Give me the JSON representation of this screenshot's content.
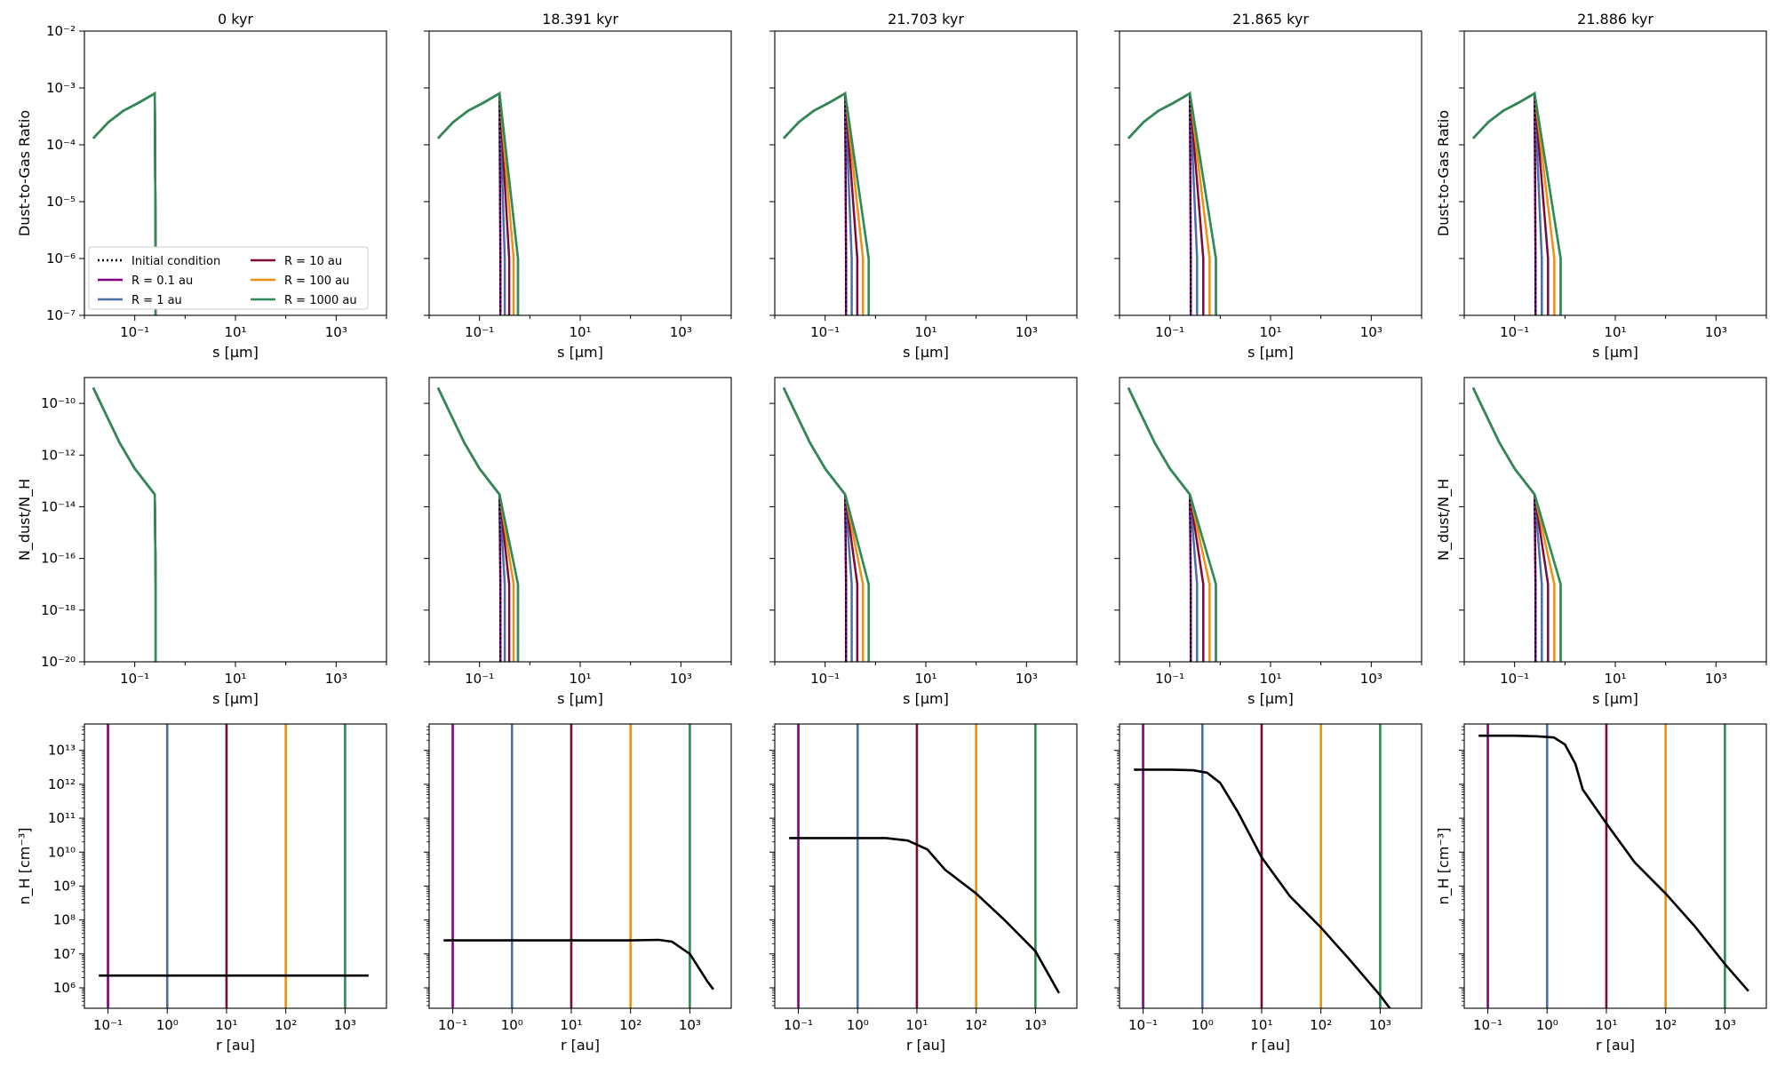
{
  "figure": {
    "panel_titles": [
      "0 kyr",
      "18.391 kyr",
      "21.703 kyr",
      "21.865 kyr",
      "21.886 kyr"
    ]
  },
  "legend": {
    "location": "lower-left of top-left panel",
    "entries": [
      {
        "label": "Initial condition",
        "color": "#000000",
        "style": "dotted"
      },
      {
        "label": "R = 0.1 au",
        "color": "#800080",
        "style": "solid"
      },
      {
        "label": "R = 1 au",
        "color": "#4a6fa5",
        "style": "solid"
      },
      {
        "label": "R = 10 au",
        "color": "#7a0a3a",
        "style": "solid"
      },
      {
        "label": "R = 100 au",
        "color": "#f0900f",
        "style": "solid"
      },
      {
        "label": "R = 1000 au",
        "color": "#2e8b57",
        "style": "solid"
      }
    ]
  },
  "colors": {
    "initial": "#000000",
    "r01": "#800080",
    "r1": "#4a6fa5",
    "r10": "#7a0a3a",
    "r100": "#f0900f",
    "r1000": "#2e8b57",
    "density": "#000000"
  },
  "chart_data": [
    {
      "type": "line",
      "row": "dust-to-gas ratio vs grain size",
      "xlabel": "s [μm]",
      "ylabel": "Dust-to-Gas Ratio",
      "xscale": "log",
      "yscale": "log",
      "xlim": [
        0.01,
        10000
      ],
      "ylim": [
        1e-07,
        0.01
      ],
      "xticks": [
        "10⁻¹",
        "10¹",
        "10³"
      ],
      "xtick_values": [
        0.1,
        10,
        1000
      ],
      "yticks": [
        "10⁻⁷",
        "10⁻⁶",
        "10⁻⁵",
        "10⁻⁴",
        "10⁻³",
        "10⁻²"
      ],
      "ytick_values": [
        1e-07,
        1e-06,
        1e-05,
        0.0001,
        0.001,
        0.01
      ],
      "panels": [
        {
          "title": "0 kyr",
          "x": [
            0.015,
            0.03,
            0.06,
            0.12,
            0.25,
            0.26,
            0.26
          ],
          "y": [
            0.00013,
            0.00025,
            0.0004,
            0.00055,
            0.0008,
            1e-06,
            1e-07
          ],
          "cutoff_spread": 0.0
        },
        {
          "title": "18.391 kyr",
          "x": [
            0.015,
            0.03,
            0.06,
            0.12,
            0.25,
            0.26,
            0.26
          ],
          "y": [
            0.00013,
            0.00025,
            0.0004,
            0.00055,
            0.0008,
            1e-06,
            1e-07
          ],
          "cutoff_spread": 0.035
        },
        {
          "title": "21.703 kyr",
          "x": [
            0.015,
            0.03,
            0.06,
            0.12,
            0.25,
            0.26,
            0.26
          ],
          "y": [
            0.00013,
            0.00025,
            0.0004,
            0.00055,
            0.0008,
            1e-06,
            1e-07
          ],
          "cutoff_spread": 0.045
        },
        {
          "title": "21.865 kyr",
          "x": [
            0.015,
            0.03,
            0.06,
            0.12,
            0.25,
            0.26,
            0.26
          ],
          "y": [
            0.00013,
            0.00025,
            0.0004,
            0.00055,
            0.0008,
            1e-06,
            1e-07
          ],
          "cutoff_spread": 0.05
        },
        {
          "title": "21.886 kyr",
          "x": [
            0.015,
            0.03,
            0.06,
            0.12,
            0.25,
            0.26,
            0.26
          ],
          "y": [
            0.00013,
            0.00025,
            0.0004,
            0.00055,
            0.0008,
            1e-06,
            1e-07
          ],
          "cutoff_spread": 0.05
        }
      ]
    },
    {
      "type": "line",
      "row": "dust number per H vs grain size",
      "xlabel": "s [μm]",
      "ylabel": "N_dust/N_H",
      "xscale": "log",
      "yscale": "log",
      "xlim": [
        0.01,
        10000
      ],
      "ylim": [
        1e-20,
        1e-09
      ],
      "xticks": [
        "10⁻¹",
        "10¹",
        "10³"
      ],
      "xtick_values": [
        0.1,
        10,
        1000
      ],
      "yticks": [
        "10⁻²⁰",
        "10⁻¹⁸",
        "10⁻¹⁶",
        "10⁻¹⁴",
        "10⁻¹²",
        "10⁻¹⁰"
      ],
      "ytick_values": [
        1e-20,
        1e-18,
        1e-16,
        1e-14,
        1e-12,
        1e-10
      ],
      "panels": [
        {
          "title": "0 kyr",
          "x": [
            0.015,
            0.025,
            0.05,
            0.1,
            0.25,
            0.26,
            0.26
          ],
          "y": [
            4e-10,
            5e-11,
            3e-12,
            3e-13,
            3e-14,
            1e-17,
            1e-20
          ],
          "cutoff_spread": 0.0
        },
        {
          "title": "18.391 kyr",
          "x": [
            0.015,
            0.025,
            0.05,
            0.1,
            0.25,
            0.26,
            0.26
          ],
          "y": [
            4e-10,
            5e-11,
            3e-12,
            3e-13,
            3e-14,
            1e-17,
            1e-20
          ],
          "cutoff_spread": 0.035
        },
        {
          "title": "21.703 kyr",
          "x": [
            0.015,
            0.025,
            0.05,
            0.1,
            0.25,
            0.26,
            0.26
          ],
          "y": [
            4e-10,
            5e-11,
            3e-12,
            3e-13,
            3e-14,
            1e-17,
            1e-20
          ],
          "cutoff_spread": 0.045
        },
        {
          "title": "21.865 kyr",
          "x": [
            0.015,
            0.025,
            0.05,
            0.1,
            0.25,
            0.26,
            0.26
          ],
          "y": [
            4e-10,
            5e-11,
            3e-12,
            3e-13,
            3e-14,
            1e-17,
            1e-20
          ],
          "cutoff_spread": 0.05
        },
        {
          "title": "21.886 kyr",
          "x": [
            0.015,
            0.025,
            0.05,
            0.1,
            0.25,
            0.26,
            0.26
          ],
          "y": [
            4e-10,
            5e-11,
            3e-12,
            3e-13,
            3e-14,
            1e-17,
            1e-20
          ],
          "cutoff_spread": 0.05
        }
      ]
    },
    {
      "type": "line",
      "row": "hydrogen number density vs radius",
      "xlabel": "r [au]",
      "ylabel": "n_H [cm⁻³]",
      "xscale": "log",
      "yscale": "log",
      "xlim": [
        0.04,
        5000
      ],
      "ylim": [
        250000.0,
        60000000000000.0
      ],
      "xticks": [
        "10⁻¹",
        "10⁰",
        "10¹",
        "10²",
        "10³"
      ],
      "xtick_values": [
        0.1,
        1,
        10,
        100,
        1000
      ],
      "yticks": [
        "10⁶",
        "10⁷",
        "10⁸",
        "10⁹",
        "10¹⁰",
        "10¹¹",
        "10¹²",
        "10¹³"
      ],
      "ytick_values": [
        1000000.0,
        10000000.0,
        100000000.0,
        1000000000.0,
        10000000000.0,
        100000000000.0,
        1000000000000.0,
        10000000000000.0
      ],
      "vlines": [
        {
          "x": 0.1,
          "label": "R = 0.1 au"
        },
        {
          "x": 1,
          "label": "R = 1 au"
        },
        {
          "x": 10,
          "label": "R = 10 au"
        },
        {
          "x": 100,
          "label": "R = 100 au"
        },
        {
          "x": 1000,
          "label": "R = 1000 au"
        }
      ],
      "panels": [
        {
          "title": "0 kyr",
          "x": [
            0.07,
            1,
            10,
            100,
            1000,
            2500
          ],
          "y": [
            2300000.0,
            2300000.0,
            2300000.0,
            2300000.0,
            2300000.0,
            2300000.0
          ]
        },
        {
          "title": "18.391 kyr",
          "x": [
            0.07,
            1,
            10,
            100,
            300,
            500,
            1000,
            2000,
            2500
          ],
          "y": [
            25000000.0,
            25000000.0,
            25000000.0,
            25000000.0,
            26000000.0,
            23000000.0,
            10000000.0,
            1500000.0,
            900000.0
          ]
        },
        {
          "title": "21.703 kyr",
          "x": [
            0.07,
            1,
            3,
            7,
            15,
            30,
            100,
            300,
            1000,
            2500
          ],
          "y": [
            26000000000.0,
            26000000000.0,
            26000000000.0,
            22000000000.0,
            12000000000.0,
            3000000000.0,
            600000000.0,
            100000000.0,
            12000000.0,
            700000.0
          ]
        },
        {
          "title": "21.865 kyr",
          "x": [
            0.07,
            0.3,
            0.7,
            1.2,
            2,
            4,
            10,
            30,
            100,
            300,
            1000,
            2500
          ],
          "y": [
            2700000000000.0,
            2700000000000.0,
            2600000000000.0,
            2200000000000.0,
            1100000000000.0,
            150000000000.0,
            7000000000.0,
            500000000.0,
            60000000.0,
            7000000.0,
            600000.0,
            70000.0
          ]
        },
        {
          "title": "21.886 kyr",
          "x": [
            0.07,
            0.3,
            0.7,
            1.3,
            2,
            3,
            4,
            10,
            30,
            100,
            300,
            1000,
            2500
          ],
          "y": [
            27000000000000.0,
            27000000000000.0,
            26000000000000.0,
            24000000000000.0,
            15000000000000.0,
            4000000000000.0,
            700000000000.0,
            70000000000.0,
            5000000000.0,
            600000000.0,
            70000000.0,
            5000000.0,
            800000.0
          ]
        }
      ]
    }
  ]
}
